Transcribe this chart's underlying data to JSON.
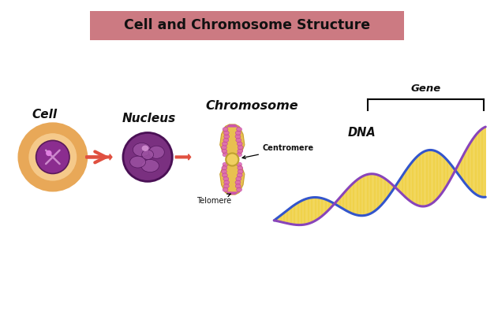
{
  "title": "Cell and Chromosome Structure",
  "title_bg": "#cc7a82",
  "title_color": "#111111",
  "bg_color": "#ffffff",
  "labels": {
    "cell": "Cell",
    "nucleus": "Nucleus",
    "chromosome": "Chromosome",
    "dna": "DNA",
    "gene": "Gene",
    "centromere": "Centromere",
    "telomere": "Telomere"
  },
  "colors": {
    "cell_outer_fill": "#f5c98a",
    "cell_outer_edge": "#e8a858",
    "cell_inner_fill": "#8b2d8f",
    "cell_inner_edge": "#5a1a5a",
    "nucleus_fill": "#7a3080",
    "nucleus_edge": "#4a1055",
    "nucleus_lobe": "#9b50a0",
    "arrow": "#e05040",
    "chrom_body": "#e8c050",
    "chrom_body_edge": "#c8a030",
    "chrom_tip": "#cc55aa",
    "centromere_dot": "#f0d060",
    "centromere_edge": "#c0a030",
    "dna_strand1": "#3355cc",
    "dna_strand2": "#8844bb",
    "dna_rungs": "#f0d040"
  }
}
